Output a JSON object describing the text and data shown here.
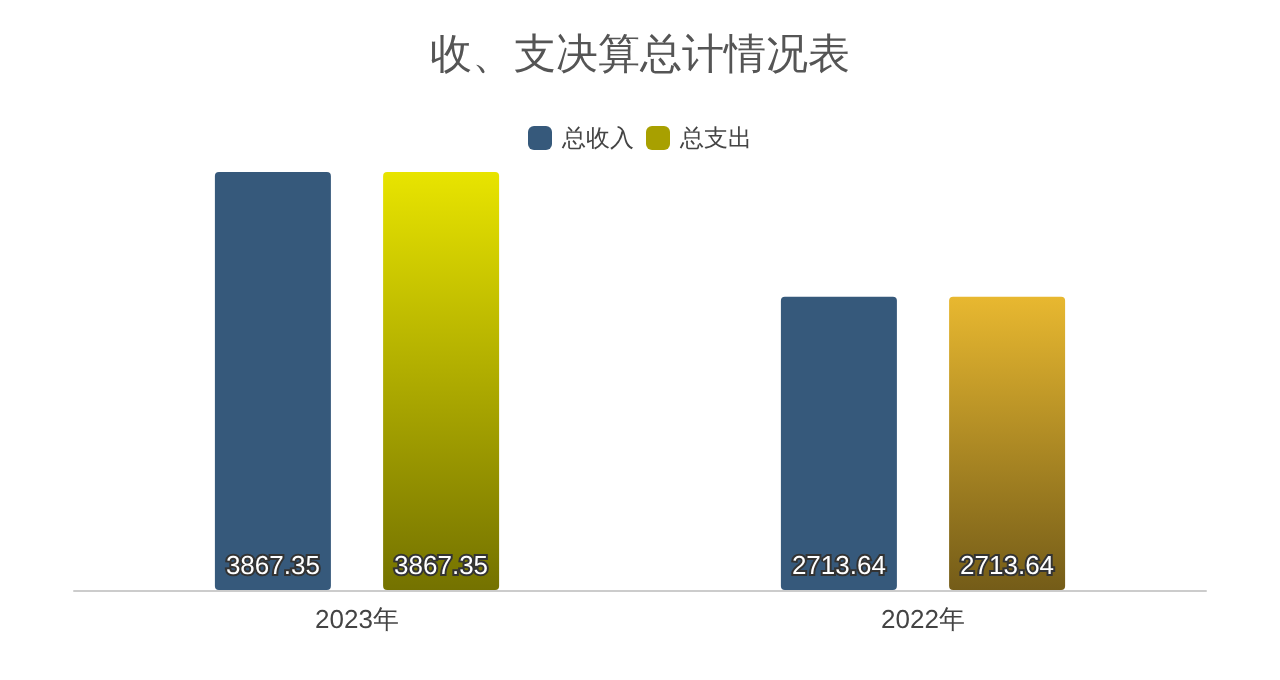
{
  "chart_data": {
    "type": "bar",
    "title": "收、支决算总计情况表",
    "categories": [
      "2023年",
      "2022年"
    ],
    "series": [
      {
        "name": "总收入",
        "color": "#36597b",
        "values": [
          3867.35,
          2713.64
        ]
      },
      {
        "name": "总支出",
        "color": "#a8a000",
        "colors": [
          "#e8e400",
          "#e8b830"
        ],
        "values": [
          3867.35,
          2713.64
        ]
      }
    ],
    "data_labels": true,
    "legend": "top",
    "grid": false
  }
}
